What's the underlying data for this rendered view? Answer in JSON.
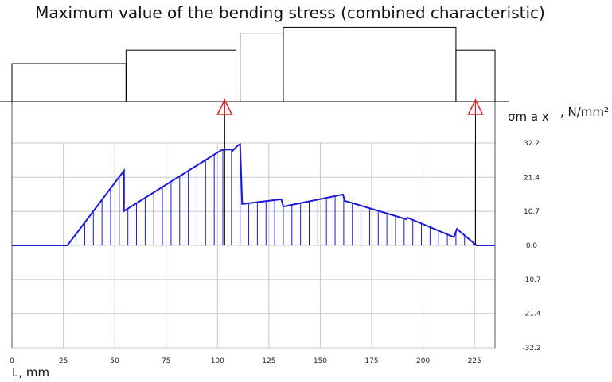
{
  "title": "Maximum value of the bending stress (combined characteristic)",
  "chart_data": {
    "type": "line",
    "title": "Maximum value of the bending stress (combined characteristic)",
    "xlabel": "L, mm",
    "ylabel_main": "σm a x",
    "ylabel_unit": ", N/mm²",
    "xlim": [
      0,
      235
    ],
    "ylim": [
      -32.2,
      32.2
    ],
    "x_ticks": [
      0,
      25,
      50,
      75,
      100,
      125,
      150,
      175,
      200,
      225
    ],
    "y_ticks": [
      32.2,
      21.4,
      10.7,
      0.0,
      -10.7,
      -21.4,
      -32.2
    ],
    "y_tick_labels": [
      "32.2",
      "21.4",
      "10.7",
      "0.0",
      "-10.7",
      "-21.4",
      "-32.2"
    ],
    "grid": true,
    "line_color": "#1a1ad6",
    "support_color": "#e02020",
    "series": [
      {
        "values": [
          [
            0,
            0
          ],
          [
            27,
            0
          ],
          [
            54.5,
            23.5
          ],
          [
            54.5,
            10.8
          ],
          [
            102,
            30.0
          ],
          [
            107,
            30.2
          ],
          [
            107,
            29.5
          ],
          [
            110,
            31.5
          ],
          [
            111,
            31.8
          ],
          [
            112,
            13.0
          ],
          [
            131,
            14.5
          ],
          [
            132,
            12.2
          ],
          [
            161,
            16.0
          ],
          [
            162,
            14.0
          ],
          [
            192,
            8.2
          ],
          [
            192.5,
            8.7
          ],
          [
            215,
            2.6
          ],
          [
            216.5,
            5.2
          ],
          [
            226,
            0
          ],
          [
            235,
            0
          ]
        ]
      }
    ],
    "supports_x": [
      103.5,
      225.5
    ],
    "shaft_sections": [
      [
        0,
        55.5
      ],
      [
        55.5,
        109
      ],
      [
        111,
        132
      ],
      [
        132,
        216
      ],
      [
        216,
        235
      ]
    ],
    "shaft_section_heights": [
      1.0,
      1.35,
      1.8,
      1.95,
      1.35
    ]
  }
}
